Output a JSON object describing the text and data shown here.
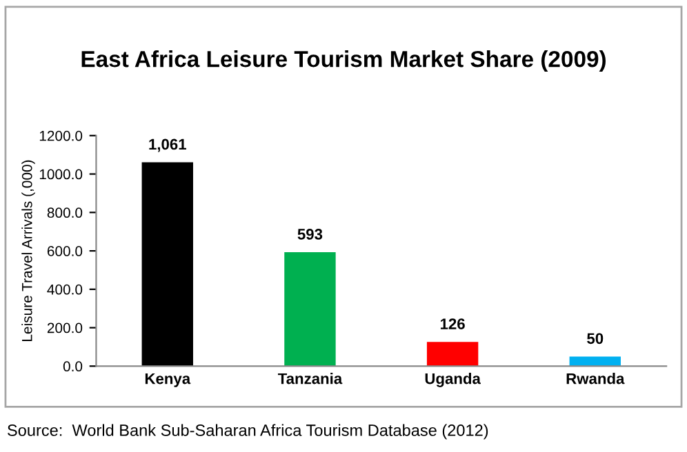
{
  "chart_data": {
    "type": "bar",
    "title": "East Africa Leisure Tourism Market Share (2009)",
    "ylabel": "Leisure Travel Arrivals (,000)",
    "categories": [
      "Kenya",
      "Tanzania",
      "Uganda",
      "Rwanda"
    ],
    "values": [
      1061,
      593,
      126,
      50
    ],
    "value_labels": [
      "1,061",
      "593",
      "126",
      "50"
    ],
    "colors": [
      "#000000",
      "#00b050",
      "#ff0000",
      "#00b0f0"
    ],
    "ylim": [
      0,
      1200
    ],
    "yticks": [
      {
        "value": 0,
        "label": "0.0"
      },
      {
        "value": 200,
        "label": "200.0"
      },
      {
        "value": 400,
        "label": "400.0"
      },
      {
        "value": 600,
        "label": "600.0"
      },
      {
        "value": 800,
        "label": "800.0"
      },
      {
        "value": 1000,
        "label": "1000.0"
      },
      {
        "value": 1200,
        "label": "1200.0"
      }
    ],
    "grid": false,
    "annotations": [
      "Source:  World Bank Sub-Saharan Africa Tourism Database (2012)"
    ]
  }
}
